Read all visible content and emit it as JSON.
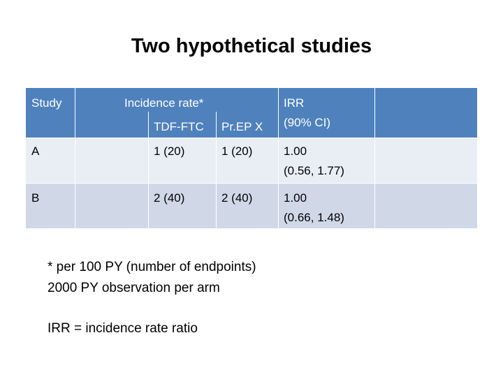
{
  "title": "Two hypothetical studies",
  "table": {
    "header": {
      "study": "Study",
      "incidence_rate": "Incidence rate*",
      "arm1": "TDF-FTC",
      "arm2": "Pr.EP X",
      "irr": [
        "IRR",
        "(90% CI)"
      ]
    },
    "rows": [
      {
        "study": "A",
        "arm1": "1 (20)",
        "arm2": "1 (20)",
        "irr": [
          "1.00",
          "(0.56, 1.77)"
        ]
      },
      {
        "study": "B",
        "arm1": "2 (40)",
        "arm2": "2 (40)",
        "irr": [
          "1.00",
          "(0.66, 1.48)"
        ]
      }
    ]
  },
  "notes": [
    "* per 100 PY (number of endpoints)",
    "2000 PY observation per arm",
    "IRR = incidence rate ratio"
  ]
}
